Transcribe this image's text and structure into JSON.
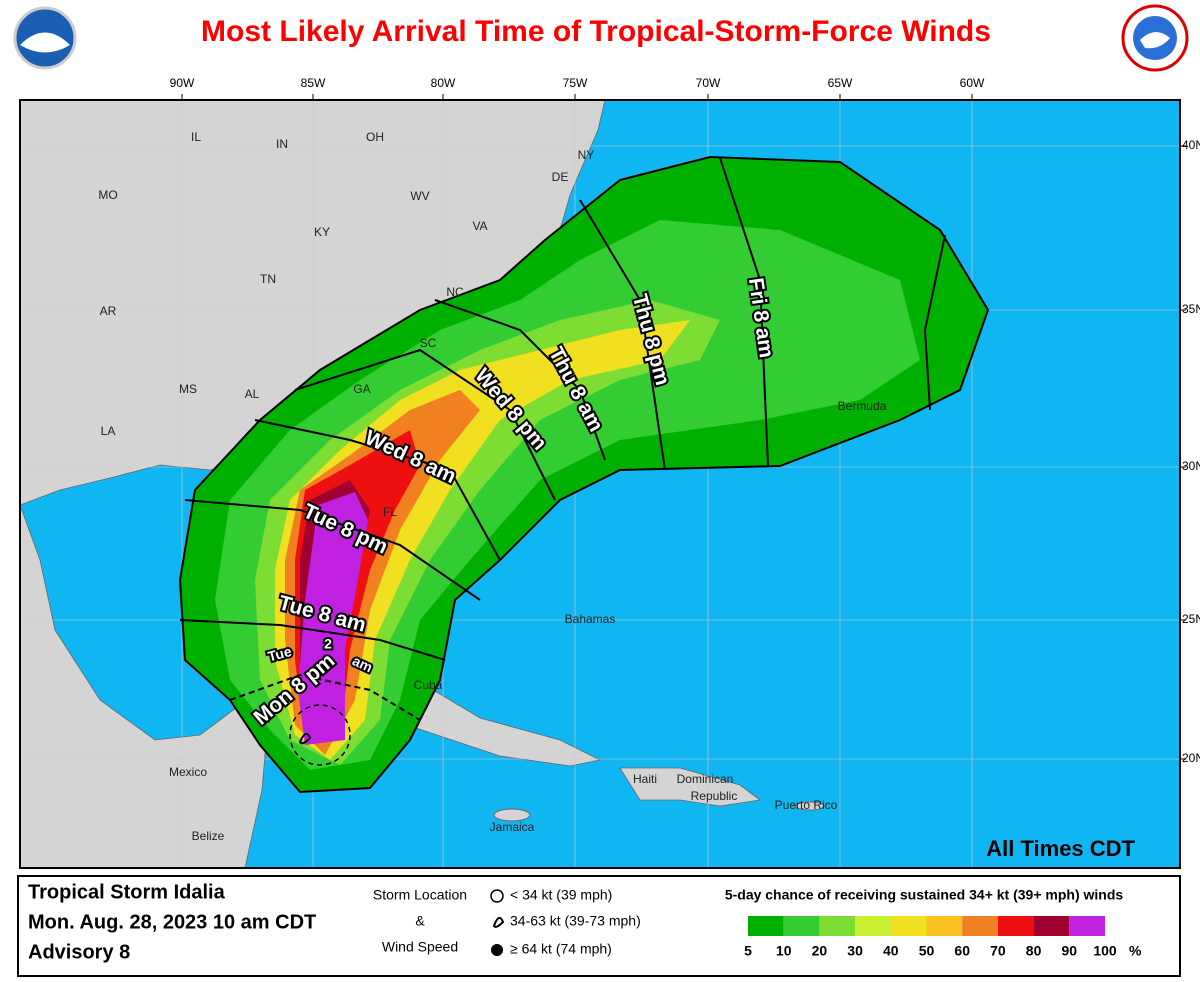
{
  "title": "Most Likely Arrival Time of Tropical-Storm-Force Winds",
  "longitude_labels": [
    "90W",
    "85W",
    "80W",
    "75W",
    "70W",
    "65W",
    "60W"
  ],
  "latitude_labels": [
    "40N",
    "35N",
    "30N",
    "25N",
    "20N"
  ],
  "places": [
    "IL",
    "IN",
    "OH",
    "MO",
    "KY",
    "WV",
    "VA",
    "TN",
    "NC",
    "AR",
    "SC",
    "GA",
    "MS",
    "AL",
    "LA",
    "FL",
    "NY",
    "DE",
    "Bermuda",
    "Bahamas",
    "Cuba",
    "Mexico",
    "Belize",
    "Haiti",
    "Dominican",
    "Republic",
    "Puerto Rico",
    "Jamaica"
  ],
  "time_labels": [
    "Mon 8 pm",
    "Tue",
    "2",
    "am",
    "Tue 8 am",
    "Tue 8 pm",
    "Wed 8 am",
    "Wed 8 pm",
    "Thu 8 am",
    "Thu 8 pm",
    "Fri 8 am"
  ],
  "time_note": "All Times CDT",
  "footer": {
    "storm": "Tropical Storm Idalia",
    "date": "Mon. Aug. 28, 2023  10 am CDT",
    "advisory": "Advisory 8",
    "storm_location": [
      "Storm Location",
      "&",
      "Wind Speed"
    ],
    "wind_legend": [
      "< 34 kt (39 mph)",
      "34-63 kt (39-73 mph)",
      "≥ 64 kt (74 mph)"
    ],
    "probability_title": "5-day chance of receiving sustained 34+ kt (39+ mph) winds",
    "probability_ticks": [
      "5",
      "10",
      "20",
      "30",
      "40",
      "50",
      "60",
      "70",
      "80",
      "90",
      "100"
    ],
    "probability_unit": "%"
  }
}
